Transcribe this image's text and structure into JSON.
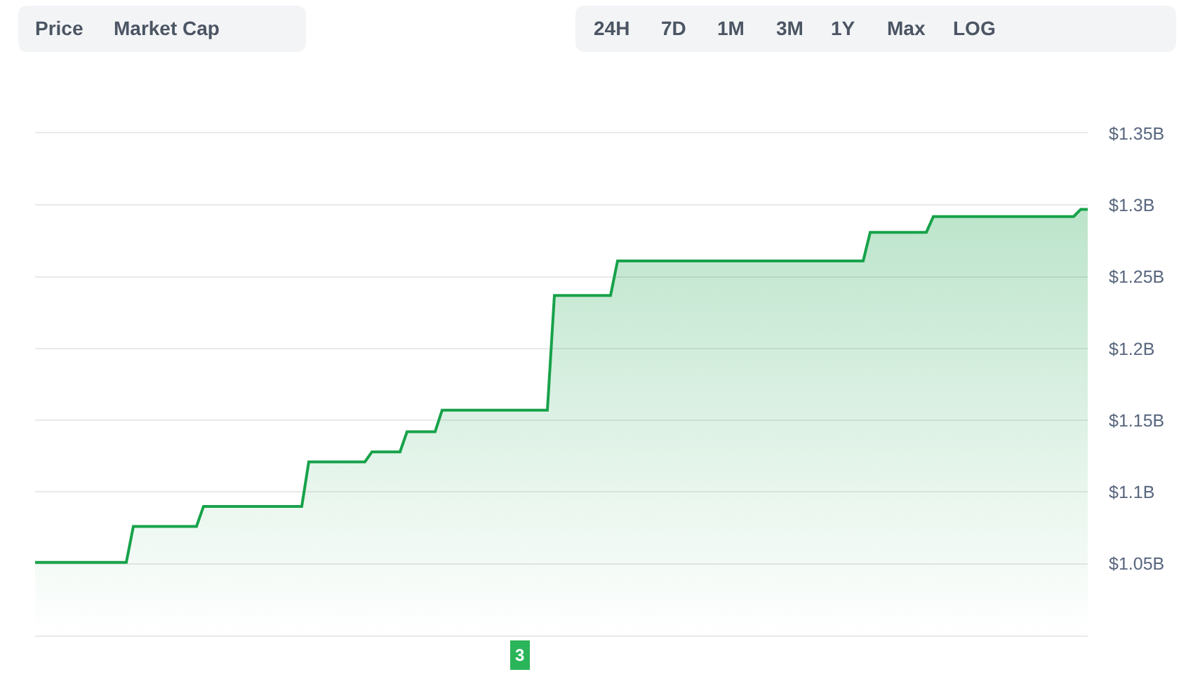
{
  "chart_data": {
    "type": "area",
    "categories": [
      null,
      null,
      null,
      null,
      null,
      null,
      null,
      null,
      null,
      null,
      null,
      null,
      null,
      null,
      null,
      null,
      null,
      null,
      null,
      null,
      null,
      null,
      null,
      null,
      null,
      null,
      null,
      null,
      null,
      null,
      null,
      null,
      null,
      null,
      null,
      null,
      null,
      null,
      null,
      null,
      null,
      null,
      null,
      null,
      null,
      null,
      null,
      null,
      null,
      null,
      null,
      null,
      null,
      null,
      null,
      null,
      null,
      null,
      null,
      null,
      null,
      null,
      null,
      null,
      null,
      null,
      null,
      null,
      null,
      null,
      null,
      null,
      null,
      null,
      null,
      null,
      null,
      null,
      null,
      null,
      null,
      null,
      null,
      null,
      null,
      null,
      null,
      null,
      null,
      null,
      null,
      null,
      null,
      null,
      null,
      null,
      null,
      null,
      null,
      null,
      null,
      null,
      null,
      null,
      null,
      null,
      null,
      null,
      null,
      null,
      null,
      null,
      null,
      null,
      null,
      null,
      null,
      null,
      null,
      null,
      null,
      null,
      null,
      null,
      null,
      null,
      null,
      null,
      null,
      null,
      null,
      null,
      null,
      null,
      null,
      null,
      null,
      null,
      null,
      null,
      null,
      null,
      null,
      null,
      null,
      null,
      null,
      null,
      null,
      null,
      null
    ],
    "series": [
      {
        "color": "#17a24a",
        "values": [
          1.051,
          1.051,
          1.051,
          1.051,
          1.051,
          1.051,
          1.051,
          1.051,
          1.051,
          1.051,
          1.051,
          1.051,
          1.051,
          1.051,
          1.076,
          1.076,
          1.076,
          1.076,
          1.076,
          1.076,
          1.076,
          1.076,
          1.076,
          1.076,
          1.09,
          1.09,
          1.09,
          1.09,
          1.09,
          1.09,
          1.09,
          1.09,
          1.09,
          1.09,
          1.09,
          1.09,
          1.09,
          1.09,
          1.09,
          1.121,
          1.121,
          1.121,
          1.121,
          1.121,
          1.121,
          1.121,
          1.121,
          1.121,
          1.128,
          1.128,
          1.128,
          1.128,
          1.128,
          1.142,
          1.142,
          1.142,
          1.142,
          1.142,
          1.157,
          1.157,
          1.157,
          1.157,
          1.157,
          1.157,
          1.157,
          1.157,
          1.157,
          1.157,
          1.157,
          1.157,
          1.157,
          1.157,
          1.157,
          1.157,
          1.237,
          1.237,
          1.237,
          1.237,
          1.237,
          1.237,
          1.237,
          1.237,
          1.237,
          1.261,
          1.261,
          1.261,
          1.261,
          1.261,
          1.261,
          1.261,
          1.261,
          1.261,
          1.261,
          1.261,
          1.261,
          1.261,
          1.261,
          1.261,
          1.261,
          1.261,
          1.261,
          1.261,
          1.261,
          1.261,
          1.261,
          1.261,
          1.261,
          1.261,
          1.261,
          1.261,
          1.261,
          1.261,
          1.261,
          1.261,
          1.261,
          1.261,
          1.261,
          1.261,
          1.261,
          1.281,
          1.281,
          1.281,
          1.281,
          1.281,
          1.281,
          1.281,
          1.281,
          1.281,
          1.292,
          1.292,
          1.292,
          1.292,
          1.292,
          1.292,
          1.292,
          1.292,
          1.292,
          1.292,
          1.292,
          1.292,
          1.292,
          1.292,
          1.292,
          1.292,
          1.292,
          1.292,
          1.292,
          1.292,
          1.292,
          1.297,
          1.297
        ]
      }
    ],
    "ylim": [
      1.0,
      1.35
    ],
    "yticks": [
      {
        "value": 1.0,
        "label": null
      },
      {
        "value": 1.05,
        "label": "$1.05B"
      },
      {
        "value": 1.1,
        "label": "$1.1B"
      },
      {
        "value": 1.15,
        "label": "$1.15B"
      },
      {
        "value": 1.2,
        "label": "$1.2B"
      },
      {
        "value": 1.25,
        "label": "$1.25B"
      },
      {
        "value": 1.3,
        "label": "$1.3B"
      },
      {
        "value": 1.35,
        "label": "$1.35B"
      }
    ],
    "grid": "y",
    "tick_labels": "y",
    "annotations": [
      "Price",
      "Market Cap",
      "24H",
      "7D",
      "1M",
      "3M",
      "1Y",
      "Max",
      "LOG",
      "3"
    ]
  }
}
